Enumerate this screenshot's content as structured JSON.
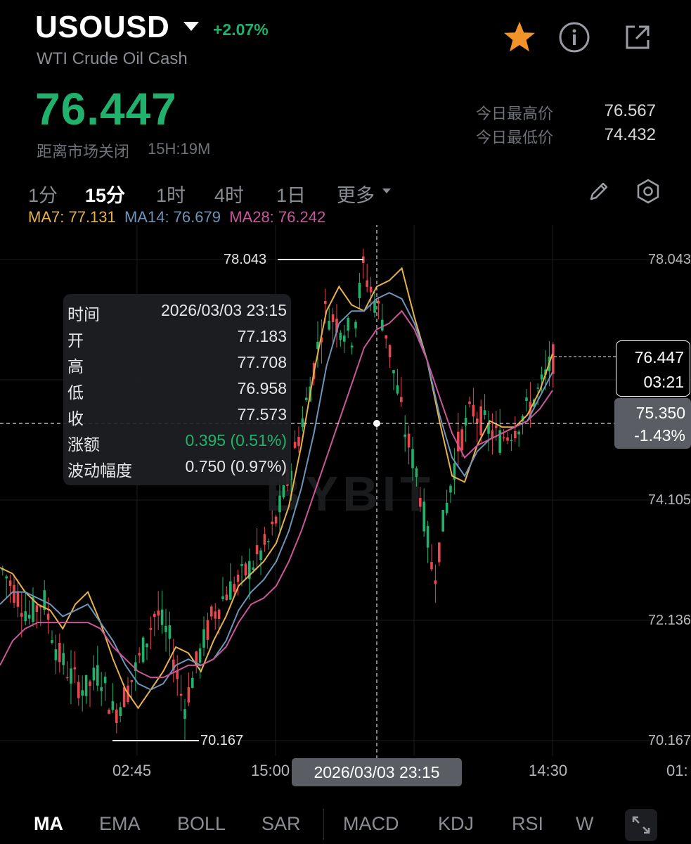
{
  "header": {
    "symbol": "USOUSD",
    "change_pct": "+2.07%",
    "subtitle": "WTI Crude Oil Cash",
    "price": "76.447",
    "market_close_label": "距离市场关闭",
    "market_close_time": "15H:19M",
    "high_label": "今日最高价",
    "high_value": "76.567",
    "low_label": "今日最低价",
    "low_value": "74.432",
    "icons": [
      "star-icon",
      "info-icon",
      "share-icon"
    ]
  },
  "timeframes": {
    "items": [
      "1分",
      "15分",
      "1时",
      "4时",
      "1日",
      "更多"
    ],
    "active": "15分",
    "icons": [
      "pencil-icon",
      "settings-icon"
    ]
  },
  "ma_legend": {
    "ma7": "MA7: 77.131",
    "ma14": "MA14: 76.679",
    "ma28": "MA28: 76.242"
  },
  "chart": {
    "watermark": "BYBIT",
    "y_axis_labels": [
      "78.043",
      "74.105",
      "72.136",
      "70.167"
    ],
    "x_axis_labels": [
      "02:45",
      "15:00",
      "14:30",
      "01:"
    ],
    "max_marker": "78.043",
    "min_marker": "70.167",
    "last_price_box": {
      "price": "76.447",
      "countdown": "03:21"
    },
    "crosshair_box": {
      "price": "75.350",
      "change": "-1.43%"
    },
    "crosshair_time": "2026/03/03 23:15"
  },
  "tooltip": {
    "rows": [
      {
        "label": "时间",
        "value": "2026/03/03 23:15"
      },
      {
        "label": "开",
        "value": "77.183"
      },
      {
        "label": "高",
        "value": "77.708"
      },
      {
        "label": "低",
        "value": "76.958"
      },
      {
        "label": "收",
        "value": "77.573"
      },
      {
        "label": "涨额",
        "value": "0.395 (0.51%)"
      },
      {
        "label": "波动幅度",
        "value": "0.750 (0.97%)"
      }
    ]
  },
  "indicators": {
    "items": [
      "MA",
      "EMA",
      "BOLL",
      "SAR",
      "MACD",
      "KDJ",
      "RSI",
      "W"
    ],
    "active": "MA"
  },
  "colors": {
    "up": "#20b26c",
    "down": "#e8474f",
    "ma7": "#e8b14a",
    "ma14": "#6c95b8",
    "ma28": "#c9579c",
    "star": "#f0942a"
  },
  "chart_data": {
    "type": "candlestick",
    "y_range": [
      70.167,
      78.043
    ],
    "series": [
      {
        "name": "MA7",
        "values": [
          73.0,
          72.9,
          72.6,
          72.4,
          72.3,
          72.0,
          72.4,
          72.6,
          72.1,
          71.5,
          71.0,
          70.7,
          71.0,
          71.3,
          71.7,
          71.6,
          71.3,
          71.8,
          72.2,
          72.7,
          72.9,
          73.1,
          73.4,
          74.0,
          75.0,
          76.2,
          77.2,
          77.6,
          77.3,
          77.2,
          77.6,
          77.7,
          77.9,
          77.1,
          76.4,
          75.4,
          74.5,
          74.4,
          75.0,
          75.4,
          75.3,
          75.3,
          75.5,
          75.9,
          76.5
        ]
      },
      {
        "name": "MA14",
        "values": [
          72.4,
          72.6,
          72.6,
          72.5,
          72.4,
          72.2,
          72.3,
          72.4,
          72.1,
          71.8,
          71.4,
          71.1,
          71.0,
          71.1,
          71.4,
          71.5,
          71.4,
          71.5,
          71.8,
          72.3,
          72.6,
          72.8,
          73.1,
          73.6,
          74.3,
          75.2,
          76.3,
          77.0,
          77.2,
          77.2,
          77.4,
          77.5,
          77.4,
          77.0,
          76.4,
          75.5,
          74.8,
          74.5,
          74.9,
          75.1,
          75.2,
          75.3,
          75.4,
          75.8,
          76.2
        ]
      },
      {
        "name": "MA28",
        "values": [
          71.4,
          71.8,
          72.0,
          72.1,
          72.1,
          72.1,
          72.1,
          72.1,
          72.0,
          71.7,
          71.5,
          71.3,
          71.2,
          71.2,
          71.3,
          71.4,
          71.4,
          71.5,
          71.7,
          72.1,
          72.4,
          72.5,
          72.7,
          73.1,
          73.6,
          74.2,
          74.8,
          75.4,
          76.0,
          76.6,
          76.9,
          77.0,
          77.2,
          76.9,
          76.4,
          75.8,
          75.2,
          74.8,
          75.0,
          75.1,
          75.2,
          75.3,
          75.4,
          75.6,
          75.9
        ]
      }
    ],
    "crosshair": {
      "time": "2026/03/03 23:15",
      "price": 75.35
    },
    "last_price": 76.447
  }
}
